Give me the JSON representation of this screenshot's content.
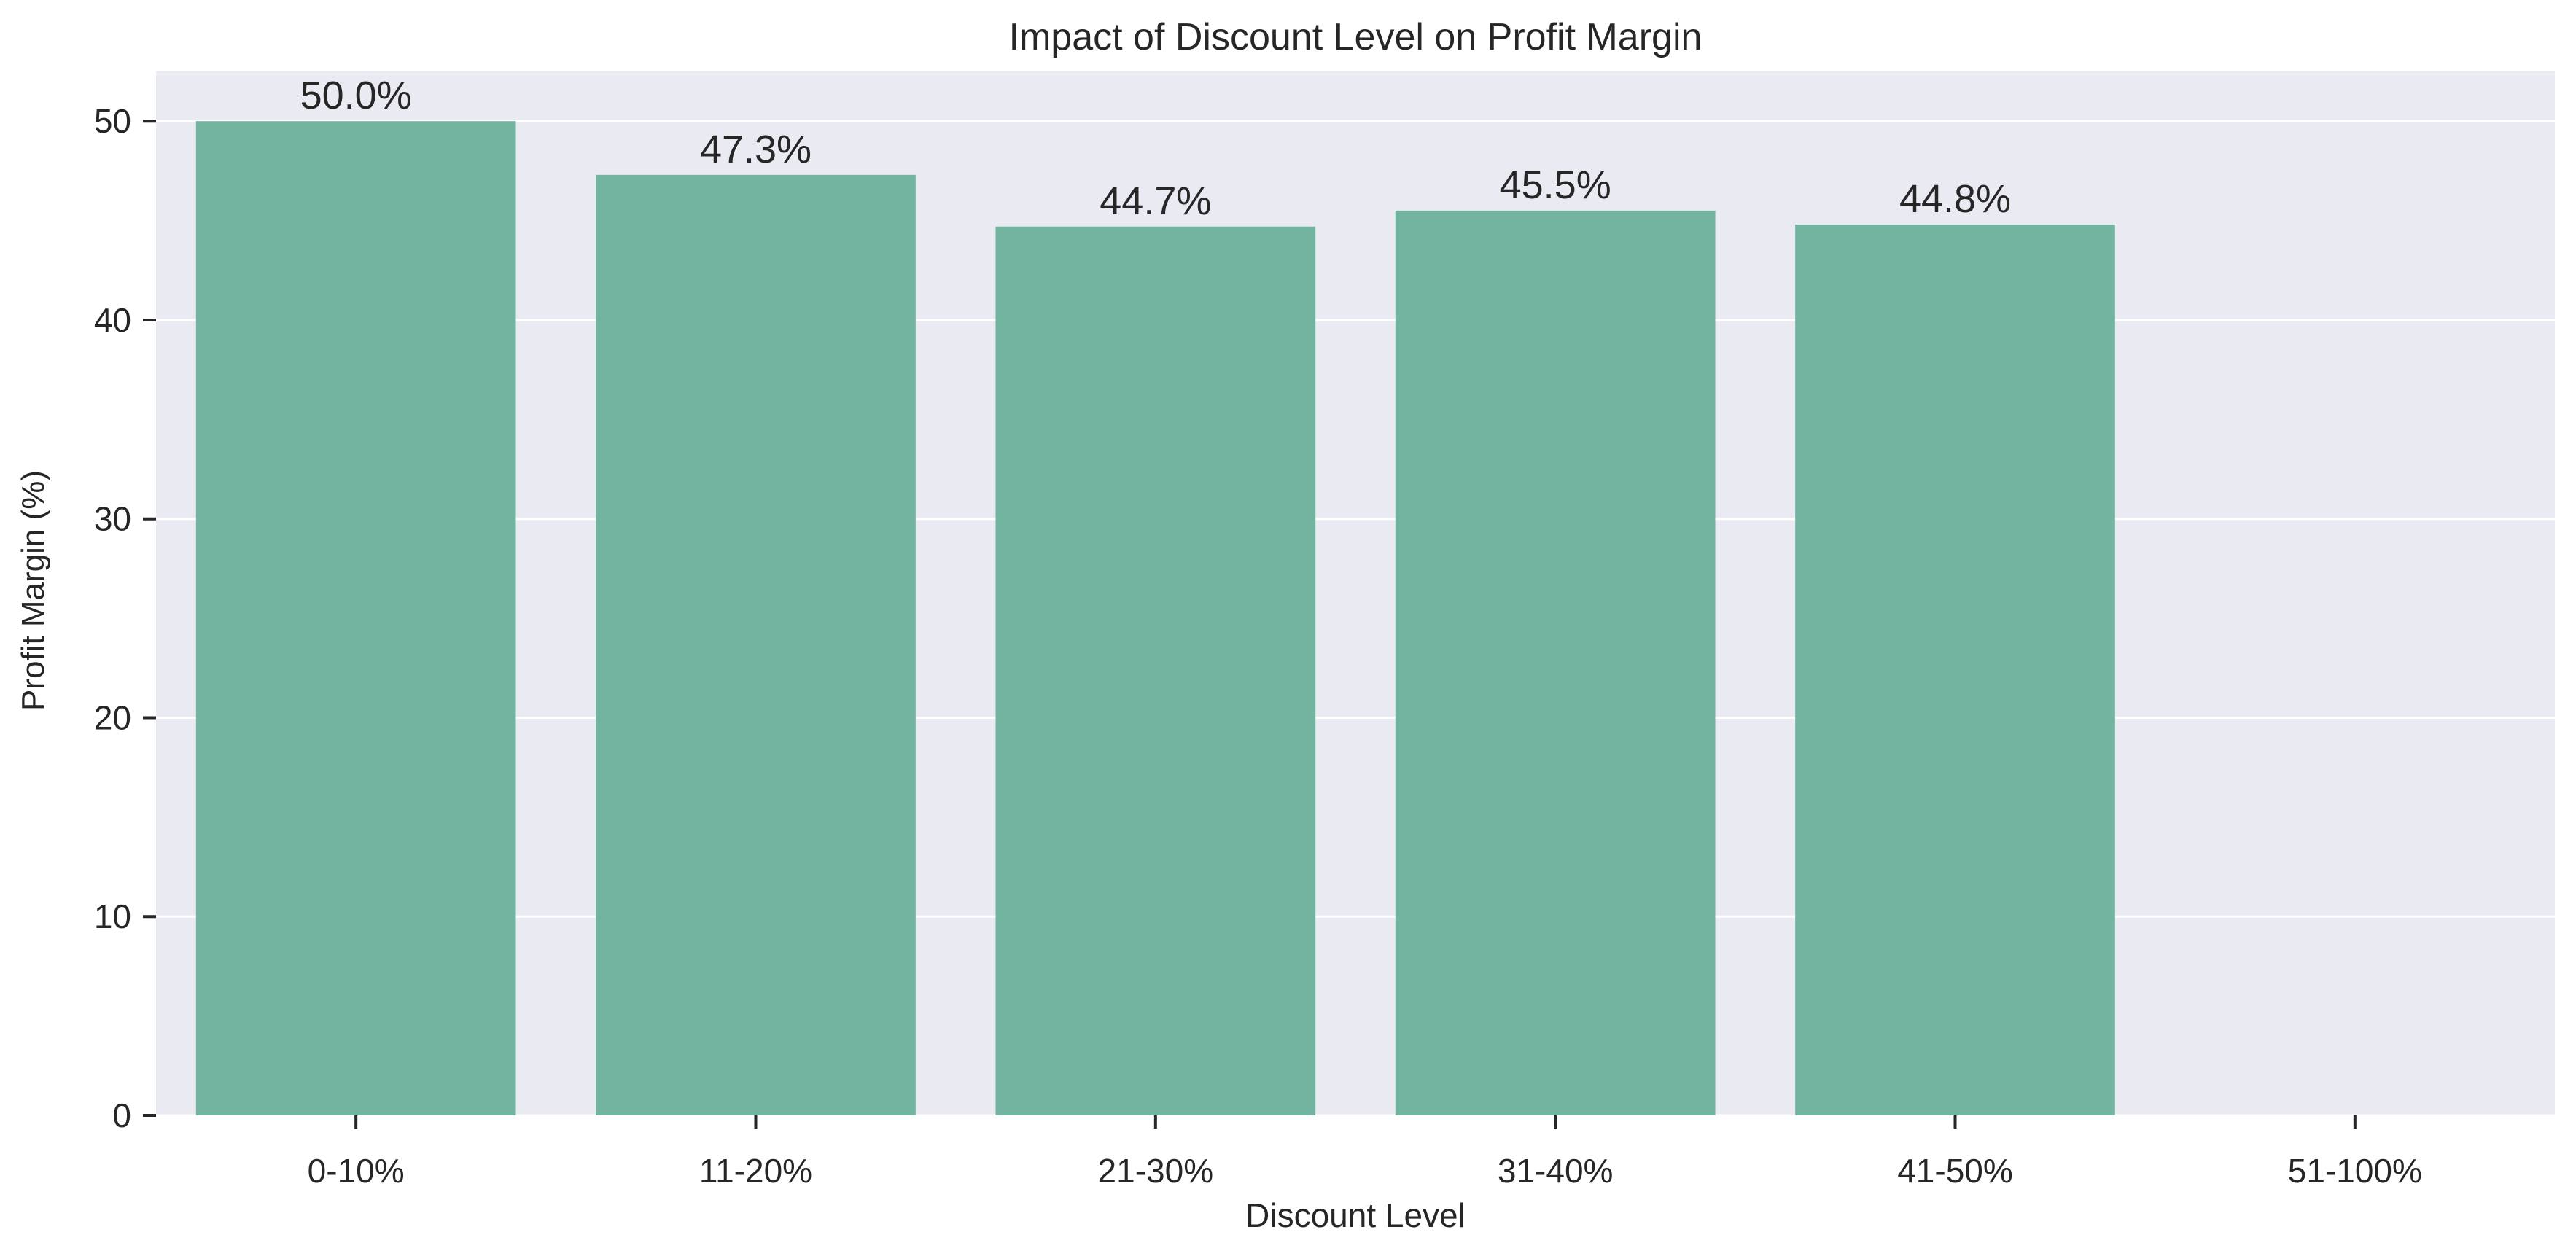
{
  "chart_data": {
    "type": "bar",
    "title": "Impact of Discount Level on Profit Margin",
    "xlabel": "Discount Level",
    "ylabel": "Profit Margin (%)",
    "categories": [
      "0-10%",
      "11-20%",
      "21-30%",
      "31-40%",
      "41-50%",
      "51-100%"
    ],
    "values": [
      50.0,
      47.3,
      44.7,
      45.5,
      44.8,
      null
    ],
    "data_labels": [
      "50.0%",
      "47.3%",
      "44.7%",
      "45.5%",
      "44.8%",
      ""
    ],
    "ylim": [
      0,
      52.5
    ],
    "yticks": [
      0,
      10,
      20,
      30,
      40,
      50
    ],
    "grid": true,
    "legend": "none",
    "colors": {
      "bar": "#73b4a0",
      "plot_background": "#eaeaf2",
      "grid": "#ffffff",
      "text": "#262626",
      "figure_background": "#ffffff"
    }
  }
}
